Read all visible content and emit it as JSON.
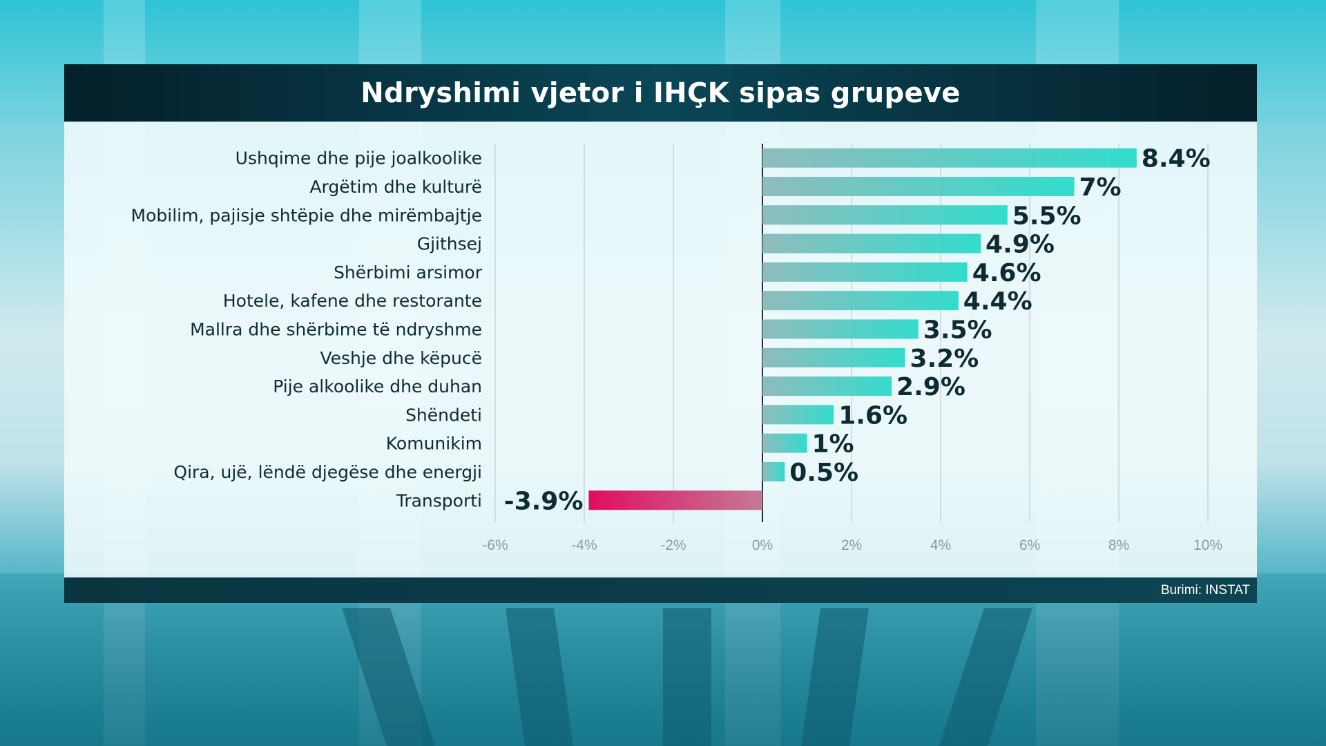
{
  "title": "Ndryshimi vjetor i IHÇK sipas grupeve",
  "source": "Burimi: INSTAT",
  "colors": {
    "positive_start": "#8fbcbc",
    "positive_end": "#33dccd",
    "negative_start": "#e10d5e",
    "negative_end": "#c47a97",
    "text": "#0e2a33",
    "grid": "#c9d6da",
    "axis": "#1b2a30"
  },
  "chart_data": {
    "type": "bar",
    "orientation": "horizontal",
    "categories": [
      "Ushqime dhe pije joalkoolike",
      "Argëtim dhe kulturë",
      "Mobilim, pajisje shtëpie dhe mirëmbajtje",
      "Gjithsej",
      "Shërbimi arsimor",
      "Hotele, kafene dhe restorante",
      "Mallra dhe shërbime të ndryshme",
      "Veshje dhe këpucë",
      "Pije alkoolike dhe duhan",
      "Shëndeti",
      "Komunikim",
      "Qira, ujë, lëndë djegëse dhe energji",
      "Transporti"
    ],
    "values": [
      8.4,
      7,
      5.5,
      4.9,
      4.6,
      4.4,
      3.5,
      3.2,
      2.9,
      1.6,
      1,
      0.5,
      -3.9
    ],
    "value_labels": [
      "8.4%",
      "7%",
      "5.5%",
      "4.9%",
      "4.6%",
      "4.4%",
      "3.5%",
      "3.2%",
      "2.9%",
      "1.6%",
      "1%",
      "0.5%",
      "-3.9%"
    ],
    "xlim": [
      -6,
      10
    ],
    "xticks": [
      -6,
      -4,
      -2,
      0,
      2,
      4,
      6,
      8,
      10
    ],
    "xtick_labels": [
      "-6%",
      "-4%",
      "-2%",
      "0%",
      "2%",
      "4%",
      "6%",
      "8%",
      "10%"
    ],
    "grid": true,
    "legend": "none"
  }
}
